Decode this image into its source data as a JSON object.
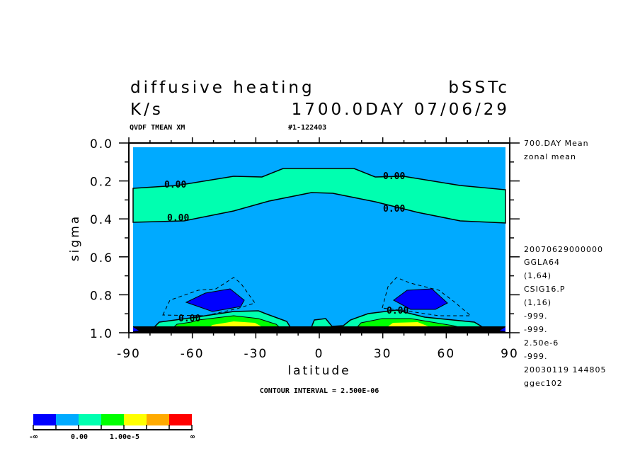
{
  "header": {
    "title": "diffusive heating",
    "experiment": "bSSTc",
    "units": "K/s",
    "time": "1700.0DAY 07/06/29",
    "variable_info": "QVDF TMEAN XM",
    "run_id": "#1-122403"
  },
  "side_info": [
    "700.DAY Mean",
    "zonal mean",
    "20070629000000",
    "GGLA64",
    "(1,64)",
    "CSIG16.P",
    "(1,16)",
    "-999.",
    "-999.",
    "2.50e-6",
    "-999.",
    "20030119 144805",
    "ggec102"
  ],
  "footer": {
    "contour_interval": "CONTOUR INTERVAL = 2.500E-06"
  },
  "colorbar": {
    "colors": [
      "#0000ff",
      "#00aaff",
      "#00ffb0",
      "#00ff00",
      "#ffff00",
      "#ffaa00",
      "#ff0000"
    ],
    "labels": [
      "-∞",
      "0.00",
      "1.00e-5",
      "∞"
    ]
  },
  "chart_data": {
    "type": "contour",
    "title": "diffusive heating",
    "xlabel": "latitude",
    "ylabel": "sigma",
    "xlim": [
      -90,
      90
    ],
    "ylim": [
      1.0,
      0.0
    ],
    "xticks": [
      -90,
      -60,
      -30,
      0,
      30,
      60,
      90
    ],
    "xtick_labels": [
      "-90",
      "-60",
      "-30",
      "0",
      "30",
      "60",
      "90"
    ],
    "yticks": [
      0.0,
      0.2,
      0.4,
      0.6,
      0.8,
      1.0
    ],
    "ytick_labels": [
      "0.0",
      "0.2",
      "0.4",
      "0.6",
      "0.8",
      "1.0"
    ],
    "contour_interval": 2.5e-06,
    "contour_labels": [
      "0.00",
      "0.00",
      "0.00",
      "0.00",
      "0.00",
      "0.00"
    ],
    "levels": [
      "-inf",
      0.0,
      1e-05,
      "inf"
    ]
  }
}
